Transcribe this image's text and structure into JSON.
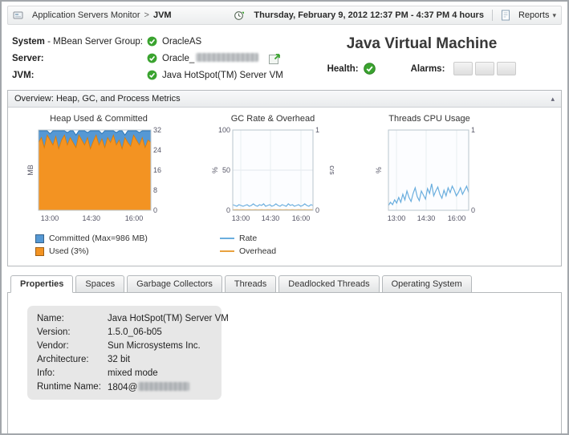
{
  "header": {
    "breadcrumb": {
      "parent": "Application Servers Monitor",
      "separator": ">",
      "current": "JVM"
    },
    "time_range": "Thursday, February 9, 2012 12:37 PM - 4:37 PM",
    "duration": "4 hours",
    "reports_label": "Reports"
  },
  "info": {
    "system_label_bold": "System",
    "system_label_rest": " - MBean Server Group:",
    "system_value": "OracleAS",
    "server_label": "Server:",
    "server_value": "Oracle_",
    "jvm_label": "JVM:",
    "jvm_value": "Java HotSpot(TM) Server VM",
    "title": "Java Virtual Machine",
    "health_label": "Health:",
    "alarms_label": "Alarms:"
  },
  "overview": {
    "title": "Overview: Heap, GC, and Process Metrics"
  },
  "colors": {
    "status_ok": "#3aa32f",
    "heap_used": "#f39322",
    "heap_committed": "#5598d4",
    "line_blue": "#6aaede",
    "line_orange": "#e9a23f"
  },
  "chart_data": [
    {
      "type": "area-band",
      "title": "Heap Used & Committed",
      "ylabel_left": "MB",
      "ylim": [
        0,
        32
      ],
      "right_ticks": [
        32,
        24,
        16,
        8,
        0
      ],
      "x_ticks": [
        "13:00",
        "14:30",
        "16:00"
      ],
      "x_tick_pos": [
        0.1,
        0.47,
        0.85
      ],
      "series": [
        {
          "name": "Committed (Max=986 MB)",
          "color": "#5598d4",
          "values": [
            31.7,
            31.7,
            31.7,
            31.7,
            30.5,
            31.7,
            31.7,
            31.7,
            31.7,
            31.7,
            31,
            31.7,
            31.7,
            30,
            31.7,
            31.7,
            31.7,
            31,
            31.7,
            31.7,
            31.7,
            31.7,
            30.5,
            31.7,
            31.7,
            31.7,
            31.7,
            31,
            31.7,
            31.7,
            30,
            31.7,
            31.7,
            31.7,
            31.7,
            31,
            31.7,
            31.7,
            31.7,
            31.7
          ]
        },
        {
          "name": "Used (3%)",
          "color": "#f39322",
          "values": [
            27,
            29,
            25,
            30,
            28,
            26,
            29.5,
            24.5,
            28,
            30,
            26,
            29,
            27,
            25,
            30,
            28,
            26,
            29,
            24.5,
            27.5,
            30,
            26,
            28.5,
            25,
            29,
            27,
            30,
            26,
            28,
            24.5,
            29,
            27,
            25.5,
            30,
            28,
            26,
            29,
            25,
            28,
            27
          ]
        }
      ]
    },
    {
      "type": "line",
      "title": "GC Rate & Overhead",
      "ylabel_left": "%",
      "ylabel_right": "c/s",
      "ylim": [
        0,
        100
      ],
      "left_ticks": [
        100,
        50,
        0
      ],
      "ylim2": [
        0,
        1
      ],
      "right_ticks": [
        1,
        0
      ],
      "x_ticks": [
        "13:00",
        "14:30",
        "16:00"
      ],
      "x_tick_pos": [
        0.1,
        0.47,
        0.85
      ],
      "series": [
        {
          "name": "Rate",
          "color": "#6aaede",
          "values": [
            7,
            6,
            5,
            7,
            6,
            5,
            6,
            7,
            5,
            6,
            8,
            6,
            5,
            7,
            6,
            8,
            5,
            6,
            7,
            5,
            6,
            8,
            6,
            5,
            7,
            6,
            5,
            8,
            6,
            7,
            5,
            6,
            7,
            5,
            6,
            8,
            6,
            5,
            7,
            6
          ]
        },
        {
          "name": "Overhead",
          "color": "#e9a23f",
          "values": [
            0.6,
            0.5,
            0.6,
            0.5,
            0.5,
            0.6,
            0.5,
            0.5,
            0.6,
            0.5,
            0.5,
            0.6,
            0.5,
            0.5,
            0.6,
            0.5,
            0.5,
            0.6,
            0.5,
            0.5,
            0.6,
            0.5,
            0.5,
            0.6,
            0.5,
            0.5,
            0.6,
            0.5,
            0.5,
            0.6,
            0.5,
            0.5,
            0.6,
            0.5,
            0.5,
            0.6,
            0.5,
            0.5,
            0.6,
            0.5
          ]
        }
      ]
    },
    {
      "type": "line",
      "title": "Threads CPU Usage",
      "ylabel_left": "%",
      "ylim": [
        0,
        1
      ],
      "right_ticks": [
        1,
        0
      ],
      "x_ticks": [
        "13:00",
        "14:30",
        "16:00"
      ],
      "x_tick_pos": [
        0.1,
        0.47,
        0.85
      ],
      "series": [
        {
          "name": "CPU Usage",
          "color": "#6aaede",
          "values": [
            0.06,
            0.1,
            0.07,
            0.13,
            0.09,
            0.16,
            0.1,
            0.2,
            0.13,
            0.24,
            0.16,
            0.11,
            0.21,
            0.28,
            0.17,
            0.12,
            0.24,
            0.19,
            0.14,
            0.27,
            0.21,
            0.33,
            0.18,
            0.24,
            0.29,
            0.2,
            0.15,
            0.25,
            0.18,
            0.28,
            0.22,
            0.3,
            0.25,
            0.18,
            0.22,
            0.28,
            0.2,
            0.25,
            0.3,
            0.22
          ]
        }
      ]
    }
  ],
  "tabs": {
    "items": [
      "Properties",
      "Spaces",
      "Garbage Collectors",
      "Threads",
      "Deadlocked Threads",
      "Operating System"
    ],
    "active": "Properties"
  },
  "properties": {
    "rows": [
      {
        "label": "Name:",
        "value": "Java HotSpot(TM) Server VM"
      },
      {
        "label": "Version:",
        "value": "1.5.0_06-b05"
      },
      {
        "label": "Vendor:",
        "value": "Sun Microsystems Inc."
      },
      {
        "label": "Architecture:",
        "value": "32 bit"
      },
      {
        "label": "Info:",
        "value": "mixed mode"
      },
      {
        "label": "Runtime Name:",
        "value": "1804@"
      }
    ]
  }
}
